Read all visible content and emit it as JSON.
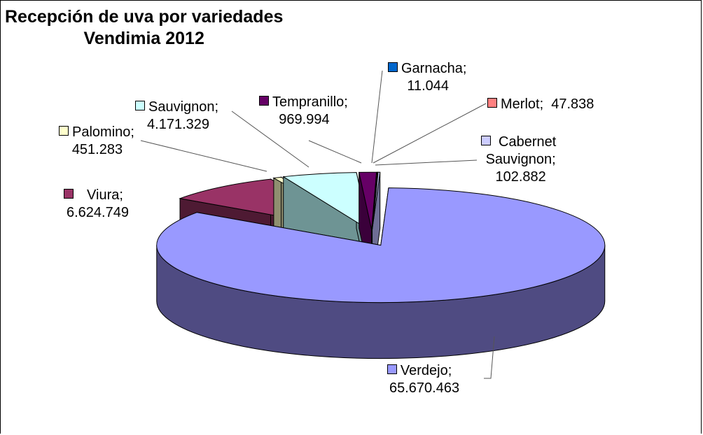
{
  "chart_data": {
    "type": "pie",
    "title_lines": [
      "Recepción de uva por variedades",
      "Vendimia 2012"
    ],
    "three_d": true,
    "slices": [
      {
        "name": "Verdejo",
        "label_lines": [
          "Verdejo;",
          "65.670.463"
        ],
        "value": 65670463,
        "color": "#9999ff",
        "side": "#4f4b82",
        "exploded": true
      },
      {
        "name": "Viura",
        "label_lines": [
          "Viura;",
          "6.624.749"
        ],
        "value": 6624749,
        "color": "#993366",
        "side": "#4e1a33",
        "exploded": true
      },
      {
        "name": "Palomino",
        "label_lines": [
          "Palomino;",
          "451.283"
        ],
        "value": 451283,
        "color": "#ffffcc",
        "side": "#8f8f70",
        "exploded": true
      },
      {
        "name": "Sauvignon",
        "label_lines": [
          "Sauvignon;",
          "4.171.329"
        ],
        "value": 4171329,
        "color": "#ccffff",
        "side": "#6e9494",
        "exploded": true
      },
      {
        "name": "Tempranillo",
        "label_lines": [
          "Tempranillo;",
          "969.994"
        ],
        "value": 969994,
        "color": "#660066",
        "side": "#3a003a",
        "exploded": true
      },
      {
        "name": "Garnacha",
        "label_lines": [
          "Garnacha;",
          "11.044"
        ],
        "value": 11044,
        "color": "#0066cc",
        "side": "#003a75",
        "exploded": true
      },
      {
        "name": "Merlot",
        "label_lines": [
          "Merlot;  47.838"
        ],
        "value": 47838,
        "color": "#ff8080",
        "side": "#8f4848",
        "exploded": true
      },
      {
        "name": "Cabernet Sauvignon",
        "label_lines": [
          "Cabernet",
          "Sauvignon;",
          "102.882"
        ],
        "value": 102882,
        "color": "#ccccff",
        "side": "#6e6e94",
        "exploded": true
      }
    ]
  }
}
